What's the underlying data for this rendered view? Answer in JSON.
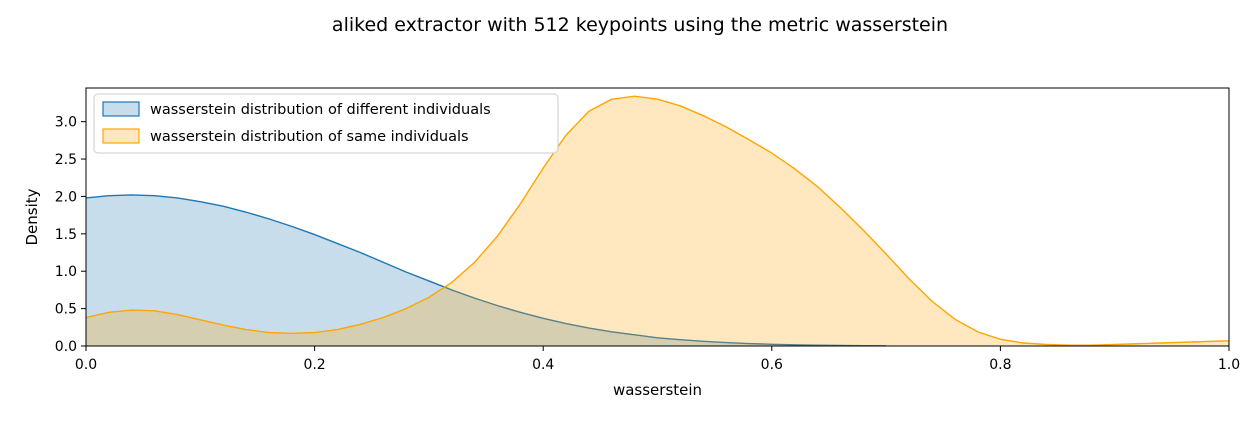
{
  "chart_data": {
    "type": "area",
    "title": "aliked extractor with 512 keypoints using the metric wasserstein",
    "xlabel": "wasserstein",
    "ylabel": "Density",
    "xlim": [
      0.0,
      1.0
    ],
    "ylim": [
      0.0,
      3.45
    ],
    "xticks": [
      0.0,
      0.2,
      0.4,
      0.6,
      0.8,
      1.0
    ],
    "xtick_labels": [
      "0.0",
      "0.2",
      "0.4",
      "0.6",
      "0.8",
      "1.0"
    ],
    "yticks": [
      0.0,
      0.5,
      1.0,
      1.5,
      2.0,
      2.5,
      3.0
    ],
    "ytick_labels": [
      "0.0",
      "0.5",
      "1.0",
      "1.5",
      "2.0",
      "2.5",
      "3.0"
    ],
    "grid": false,
    "legend_position": "top-left",
    "series": [
      {
        "name": "wasserstein distribution of different individuals",
        "color": "#1f77b4",
        "x": [
          0.0,
          0.02,
          0.04,
          0.06,
          0.08,
          0.1,
          0.12,
          0.14,
          0.16,
          0.18,
          0.2,
          0.22,
          0.24,
          0.26,
          0.28,
          0.3,
          0.32,
          0.34,
          0.36,
          0.38,
          0.4,
          0.42,
          0.44,
          0.46,
          0.48,
          0.5,
          0.52,
          0.54,
          0.56,
          0.58,
          0.6,
          0.62,
          0.64,
          0.66,
          0.68,
          0.7
        ],
        "y": [
          1.98,
          2.01,
          2.02,
          2.01,
          1.98,
          1.93,
          1.87,
          1.79,
          1.7,
          1.6,
          1.49,
          1.37,
          1.25,
          1.12,
          0.99,
          0.87,
          0.75,
          0.64,
          0.54,
          0.45,
          0.37,
          0.3,
          0.24,
          0.19,
          0.15,
          0.11,
          0.085,
          0.063,
          0.046,
          0.033,
          0.023,
          0.016,
          0.011,
          0.007,
          0.004,
          0.002
        ]
      },
      {
        "name": "wasserstein distribution of same individuals",
        "color": "#ffa500",
        "x": [
          0.0,
          0.02,
          0.04,
          0.06,
          0.08,
          0.1,
          0.12,
          0.14,
          0.16,
          0.18,
          0.2,
          0.22,
          0.24,
          0.26,
          0.28,
          0.3,
          0.32,
          0.34,
          0.36,
          0.38,
          0.4,
          0.42,
          0.44,
          0.46,
          0.48,
          0.5,
          0.52,
          0.54,
          0.56,
          0.58,
          0.6,
          0.62,
          0.64,
          0.66,
          0.68,
          0.7,
          0.72,
          0.74,
          0.76,
          0.78,
          0.8,
          0.82,
          0.84,
          0.86,
          0.88,
          0.9,
          0.92,
          0.94,
          0.96,
          0.98,
          1.0
        ],
        "y": [
          0.38,
          0.45,
          0.48,
          0.47,
          0.42,
          0.35,
          0.28,
          0.22,
          0.18,
          0.17,
          0.18,
          0.22,
          0.29,
          0.38,
          0.5,
          0.65,
          0.85,
          1.12,
          1.47,
          1.9,
          2.38,
          2.82,
          3.14,
          3.3,
          3.34,
          3.3,
          3.21,
          3.08,
          2.93,
          2.76,
          2.58,
          2.37,
          2.13,
          1.85,
          1.55,
          1.23,
          0.9,
          0.6,
          0.36,
          0.19,
          0.09,
          0.04,
          0.02,
          0.01,
          0.01,
          0.02,
          0.03,
          0.04,
          0.05,
          0.06,
          0.07
        ]
      }
    ]
  }
}
